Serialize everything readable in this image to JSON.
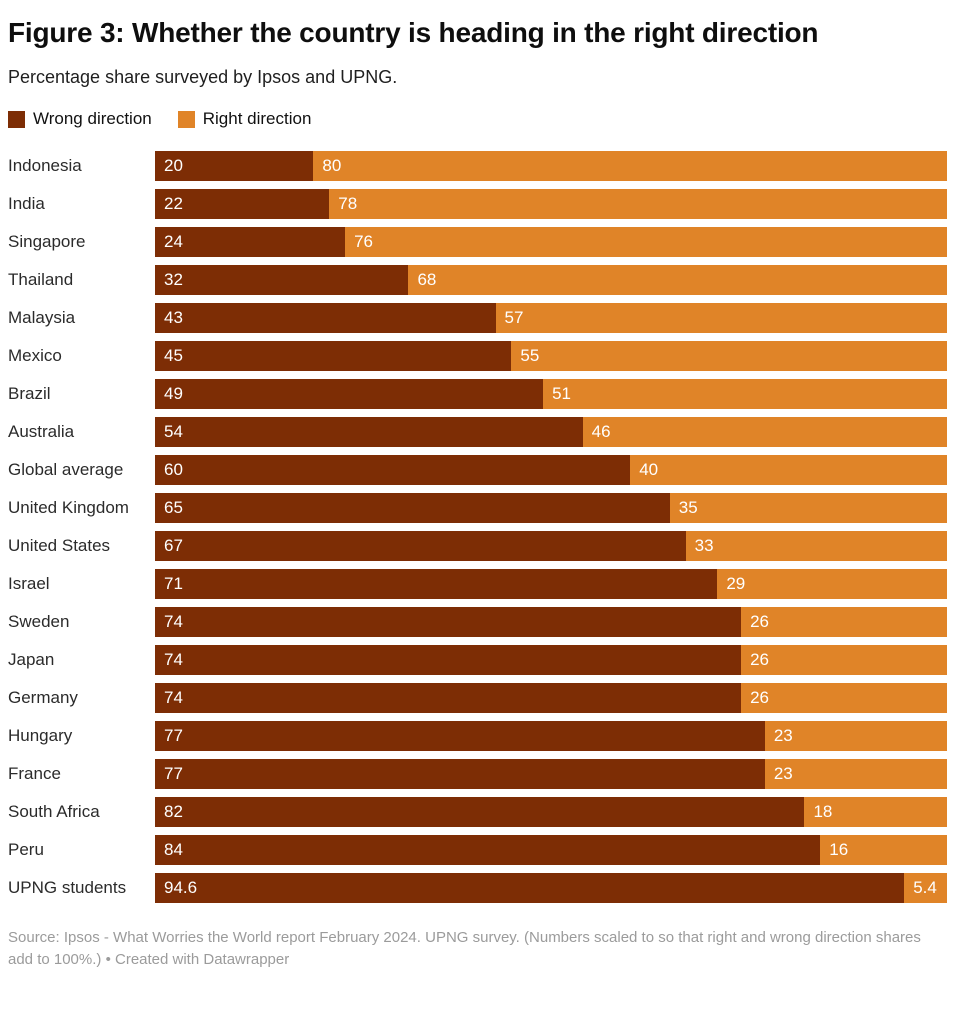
{
  "header": {
    "title": "Figure 3: Whether the country is heading in the right direction",
    "subtitle": "Percentage share surveyed by Ipsos and UPNG."
  },
  "legend": [
    {
      "label": "Wrong direction",
      "color": "#7D2D05"
    },
    {
      "label": "Right direction",
      "color": "#E08428"
    }
  ],
  "chart_data": {
    "type": "bar",
    "orientation": "horizontal",
    "stacked": true,
    "value_labels": true,
    "xlim": [
      0,
      100
    ],
    "grid": false,
    "axis_ticks": "none",
    "categories": [
      "Indonesia",
      "India",
      "Singapore",
      "Thailand",
      "Malaysia",
      "Mexico",
      "Brazil",
      "Australia",
      "Global average",
      "United Kingdom",
      "United States",
      "Israel",
      "Sweden",
      "Japan",
      "Germany",
      "Hungary",
      "France",
      "South Africa",
      "Peru",
      "UPNG students"
    ],
    "series": [
      {
        "name": "Wrong direction",
        "color": "#7D2D05",
        "values": [
          20,
          22,
          24,
          32,
          43,
          45,
          49,
          54,
          60,
          65,
          67,
          71,
          74,
          74,
          74,
          77,
          77,
          82,
          84,
          94.6
        ]
      },
      {
        "name": "Right direction",
        "color": "#E08428",
        "values": [
          80,
          78,
          76,
          68,
          57,
          55,
          51,
          46,
          40,
          35,
          33,
          29,
          26,
          26,
          26,
          23,
          23,
          18,
          16,
          5.4
        ]
      }
    ]
  },
  "footer": {
    "text": "Source: Ipsos - What Worries the World report February 2024. UPNG survey. (Numbers scaled to so that right and wrong direction shares add to 100%.) • Created with Datawrapper"
  }
}
